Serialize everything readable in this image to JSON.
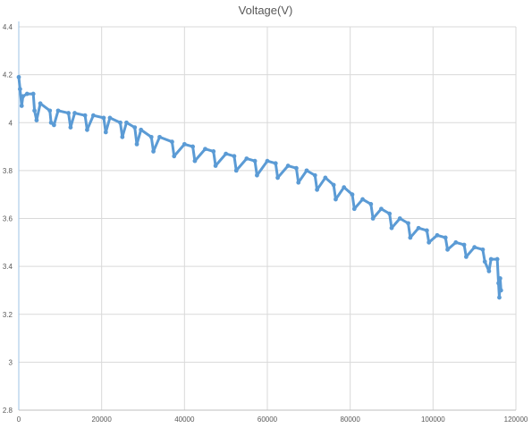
{
  "chart_data": {
    "type": "scatter",
    "title": "Voltage(V)",
    "xlabel": "",
    "ylabel": "",
    "xlim": [
      0,
      120000
    ],
    "ylim": [
      2.8,
      4.4
    ],
    "x_ticks": [
      0,
      20000,
      40000,
      60000,
      80000,
      100000,
      120000
    ],
    "y_ticks": [
      2.8,
      3,
      3.2,
      3.4,
      3.6,
      3.8,
      4,
      4.2,
      4.4
    ],
    "x_tick_labels": [
      "0",
      "20000",
      "40000",
      "60000",
      "80000",
      "100000",
      "120000"
    ],
    "y_tick_labels": [
      "2.8",
      "3",
      "3.2",
      "3.4",
      "3.6",
      "3.8",
      "4",
      "4.2",
      "4.4"
    ],
    "grid": true,
    "marker_color": "#5b9bd5",
    "series": [
      {
        "points": [
          {
            "x": 0,
            "y": 4.19
          },
          {
            "x": 300,
            "y": 4.14
          },
          {
            "x": 700,
            "y": 4.07
          },
          {
            "x": 1000,
            "y": 4.11
          },
          {
            "x": 2000,
            "y": 4.12
          },
          {
            "x": 3500,
            "y": 4.12
          },
          {
            "x": 3800,
            "y": 4.05
          },
          {
            "x": 4300,
            "y": 4.01
          },
          {
            "x": 5200,
            "y": 4.08
          },
          {
            "x": 7500,
            "y": 4.05
          },
          {
            "x": 7800,
            "y": 4.0
          },
          {
            "x": 8500,
            "y": 3.99
          },
          {
            "x": 9500,
            "y": 4.05
          },
          {
            "x": 12000,
            "y": 4.04
          },
          {
            "x": 12500,
            "y": 3.98
          },
          {
            "x": 13500,
            "y": 4.04
          },
          {
            "x": 16000,
            "y": 4.03
          },
          {
            "x": 16500,
            "y": 3.97
          },
          {
            "x": 18000,
            "y": 4.03
          },
          {
            "x": 20500,
            "y": 4.02
          },
          {
            "x": 21000,
            "y": 3.96
          },
          {
            "x": 22000,
            "y": 4.02
          },
          {
            "x": 24500,
            "y": 4.0
          },
          {
            "x": 25000,
            "y": 3.94
          },
          {
            "x": 26000,
            "y": 4.0
          },
          {
            "x": 28000,
            "y": 3.98
          },
          {
            "x": 28500,
            "y": 3.91
          },
          {
            "x": 29500,
            "y": 3.97
          },
          {
            "x": 32000,
            "y": 3.94
          },
          {
            "x": 32500,
            "y": 3.88
          },
          {
            "x": 34000,
            "y": 3.94
          },
          {
            "x": 37000,
            "y": 3.92
          },
          {
            "x": 37500,
            "y": 3.86
          },
          {
            "x": 40000,
            "y": 3.91
          },
          {
            "x": 42000,
            "y": 3.9
          },
          {
            "x": 42500,
            "y": 3.84
          },
          {
            "x": 45000,
            "y": 3.89
          },
          {
            "x": 47000,
            "y": 3.88
          },
          {
            "x": 47500,
            "y": 3.82
          },
          {
            "x": 50000,
            "y": 3.87
          },
          {
            "x": 52000,
            "y": 3.86
          },
          {
            "x": 52500,
            "y": 3.8
          },
          {
            "x": 55000,
            "y": 3.85
          },
          {
            "x": 57000,
            "y": 3.84
          },
          {
            "x": 57500,
            "y": 3.78
          },
          {
            "x": 60000,
            "y": 3.84
          },
          {
            "x": 62000,
            "y": 3.83
          },
          {
            "x": 62500,
            "y": 3.77
          },
          {
            "x": 65000,
            "y": 3.82
          },
          {
            "x": 67000,
            "y": 3.81
          },
          {
            "x": 67500,
            "y": 3.75
          },
          {
            "x": 69500,
            "y": 3.8
          },
          {
            "x": 71500,
            "y": 3.78
          },
          {
            "x": 72000,
            "y": 3.72
          },
          {
            "x": 74000,
            "y": 3.77
          },
          {
            "x": 76000,
            "y": 3.74
          },
          {
            "x": 76500,
            "y": 3.68
          },
          {
            "x": 78500,
            "y": 3.73
          },
          {
            "x": 80500,
            "y": 3.7
          },
          {
            "x": 81000,
            "y": 3.64
          },
          {
            "x": 83000,
            "y": 3.68
          },
          {
            "x": 85000,
            "y": 3.66
          },
          {
            "x": 85500,
            "y": 3.6
          },
          {
            "x": 87500,
            "y": 3.64
          },
          {
            "x": 89500,
            "y": 3.62
          },
          {
            "x": 90000,
            "y": 3.56
          },
          {
            "x": 92000,
            "y": 3.6
          },
          {
            "x": 94000,
            "y": 3.58
          },
          {
            "x": 94500,
            "y": 3.52
          },
          {
            "x": 96500,
            "y": 3.56
          },
          {
            "x": 98500,
            "y": 3.55
          },
          {
            "x": 99000,
            "y": 3.5
          },
          {
            "x": 101000,
            "y": 3.53
          },
          {
            "x": 103000,
            "y": 3.52
          },
          {
            "x": 103500,
            "y": 3.47
          },
          {
            "x": 105500,
            "y": 3.5
          },
          {
            "x": 107500,
            "y": 3.49
          },
          {
            "x": 108000,
            "y": 3.44
          },
          {
            "x": 110000,
            "y": 3.48
          },
          {
            "x": 112000,
            "y": 3.47
          },
          {
            "x": 112500,
            "y": 3.42
          },
          {
            "x": 113500,
            "y": 3.38
          },
          {
            "x": 114000,
            "y": 3.43
          },
          {
            "x": 115500,
            "y": 3.43
          },
          {
            "x": 115800,
            "y": 3.33
          },
          {
            "x": 116000,
            "y": 3.27
          },
          {
            "x": 116200,
            "y": 3.35
          },
          {
            "x": 116400,
            "y": 3.3
          }
        ]
      }
    ]
  }
}
